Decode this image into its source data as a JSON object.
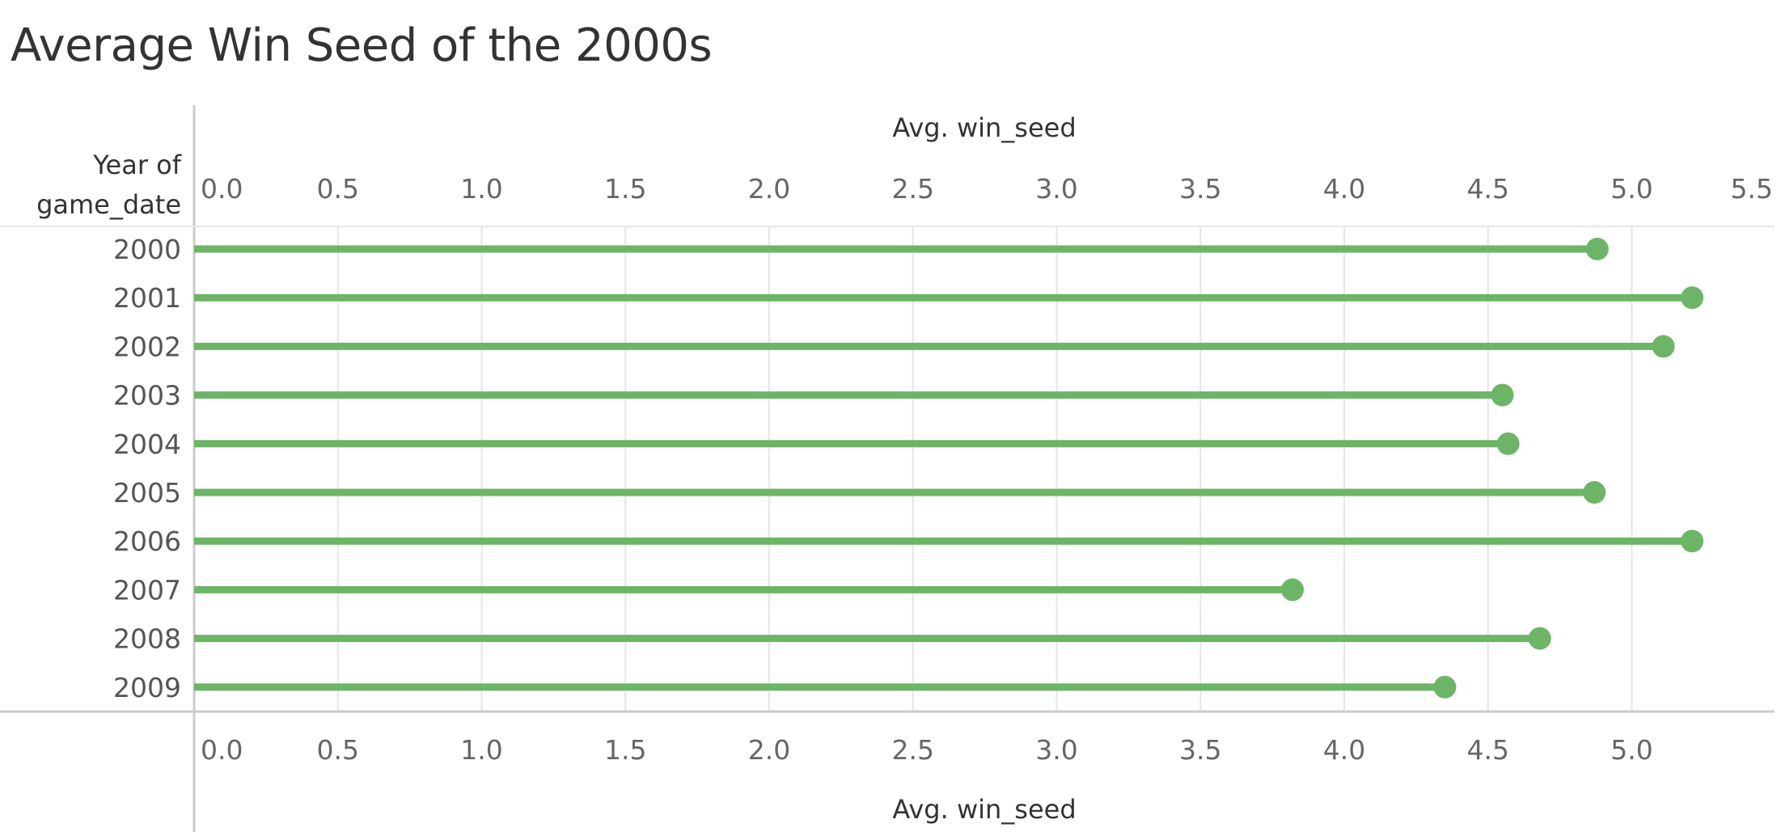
{
  "title": "Average Win Seed of the 2000s",
  "row_header": [
    "Year of",
    "game_date"
  ],
  "colors": {
    "mark": "#6db566",
    "grid": "#e6e6e6",
    "axis": "#cccccc",
    "text": "#333333",
    "tick": "#666666"
  },
  "chart_data": {
    "type": "lollipop",
    "orientation": "horizontal",
    "xlabel_top": "Avg. win_seed",
    "xlabel_bottom": "Avg. win_seed",
    "ylabel": "Year of game_date",
    "xlim": [
      0,
      5.5
    ],
    "top_ticks": [
      "0.0",
      "0.5",
      "1.0",
      "1.5",
      "2.0",
      "2.5",
      "3.0",
      "3.5",
      "4.0",
      "4.5",
      "5.0",
      "5.5"
    ],
    "bottom_ticks": [
      "0.0",
      "0.5",
      "1.0",
      "1.5",
      "2.0",
      "2.5",
      "3.0",
      "3.5",
      "4.0",
      "4.5",
      "5.0"
    ],
    "grid": true,
    "categories": [
      "2000",
      "2001",
      "2002",
      "2003",
      "2004",
      "2005",
      "2006",
      "2007",
      "2008",
      "2009"
    ],
    "values": [
      4.88,
      5.21,
      5.11,
      4.55,
      4.57,
      4.87,
      5.21,
      3.82,
      4.68,
      4.35
    ]
  }
}
